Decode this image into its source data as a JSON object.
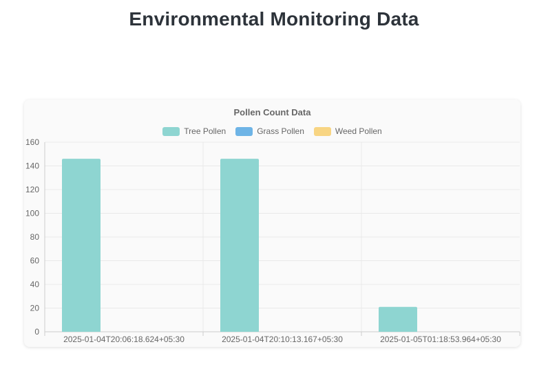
{
  "page": {
    "title": "Environmental Monitoring Data"
  },
  "chart_data": {
    "type": "bar",
    "title": "Pollen Count Data",
    "categories": [
      "2025-01-04T20:06:18.624+05:30",
      "2025-01-04T20:10:13.167+05:30",
      "2025-01-05T01:18:53.964+05:30"
    ],
    "series": [
      {
        "name": "Tree Pollen",
        "color": "#8ed5d1",
        "values": [
          146,
          146,
          21
        ]
      },
      {
        "name": "Grass Pollen",
        "color": "#6eb4e6",
        "values": [
          0,
          0,
          0
        ]
      },
      {
        "name": "Weed Pollen",
        "color": "#f8d583",
        "values": [
          0,
          0,
          0
        ]
      }
    ],
    "ylim": [
      0,
      160
    ],
    "y_ticks": [
      0,
      20,
      40,
      60,
      80,
      100,
      120,
      140,
      160
    ],
    "grid": true,
    "legend_position": "top",
    "xlabel": "",
    "ylabel": ""
  },
  "theme": {
    "page_title_color": "#2d333a",
    "chart_title_color": "#666666",
    "axis_text_color": "#666666",
    "grid_color": "#e9e9e9",
    "axis_line_color": "#cccccc",
    "card_background": "#fafafa"
  }
}
